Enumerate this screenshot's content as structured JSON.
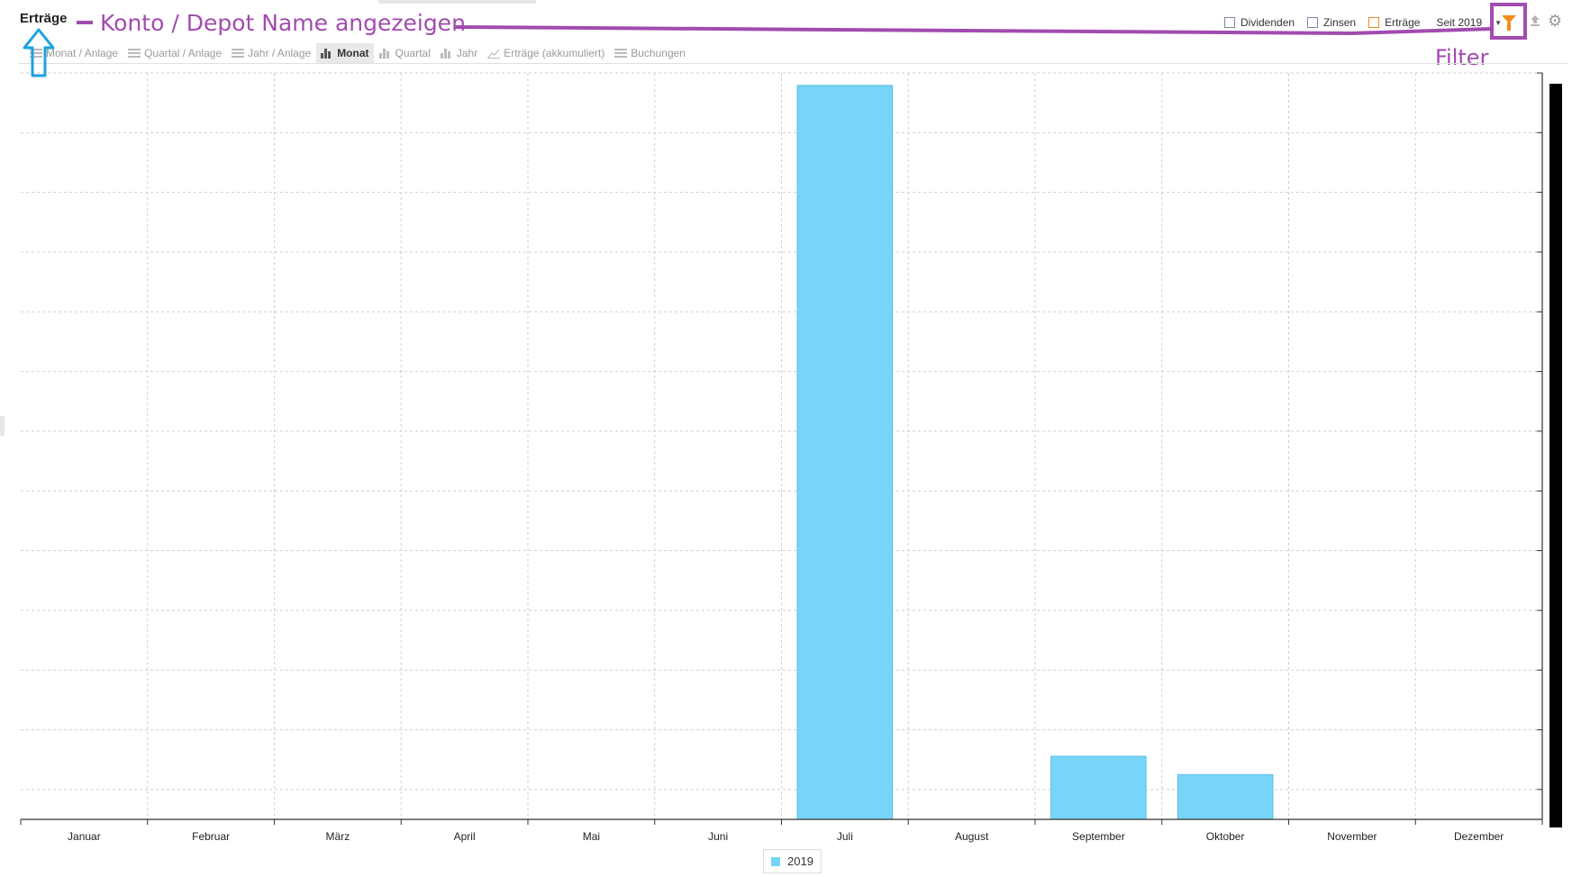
{
  "title": "Erträge",
  "annotations": {
    "konto_text": "Konto / Depot Name angezeigen",
    "filter_text": "Filter"
  },
  "tabs": [
    {
      "label": "Monat / Anlage",
      "icon": "list-icon",
      "active": false
    },
    {
      "label": "Quartal / Anlage",
      "icon": "list-icon",
      "active": false
    },
    {
      "label": "Jahr / Anlage",
      "icon": "list-icon",
      "active": false
    },
    {
      "label": "Monat",
      "icon": "bar-chart-icon",
      "active": true
    },
    {
      "label": "Quartal",
      "icon": "bar-chart-icon",
      "active": false
    },
    {
      "label": "Jahr",
      "icon": "bar-chart-icon",
      "active": false
    },
    {
      "label": "Erträge (akkumuliert)",
      "icon": "line-chart-icon",
      "active": false
    },
    {
      "label": "Buchungen",
      "icon": "list-icon",
      "active": false
    }
  ],
  "toolbar": {
    "checkboxes": [
      {
        "label": "Dividenden",
        "checked": false
      },
      {
        "label": "Zinsen",
        "checked": false
      },
      {
        "label": "Erträge",
        "checked": false
      }
    ],
    "period": "Seit 2019"
  },
  "colors": {
    "bar": "#76d5f9",
    "annotation": "#a24bb0",
    "arrow": "#1ba1e2",
    "filter": "#f28c1a"
  },
  "chart_data": {
    "type": "bar",
    "categories": [
      "Januar",
      "Februar",
      "März",
      "April",
      "Mai",
      "Juni",
      "Juli",
      "August",
      "September",
      "Oktober",
      "November",
      "Dezember"
    ],
    "series": [
      {
        "name": "2019",
        "values": [
          0,
          0,
          0,
          0,
          0,
          0,
          100,
          0,
          8.6,
          6.1,
          0,
          0
        ]
      }
    ],
    "ylim": [
      0,
      101.7
    ],
    "grid": true,
    "legend": "bottom-center"
  }
}
